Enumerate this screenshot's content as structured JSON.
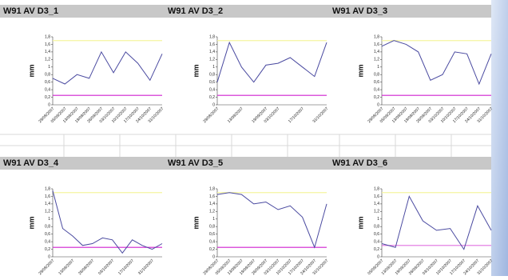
{
  "chart_data": [
    {
      "type": "line",
      "title": "W91 AV D3_1",
      "y_label": "mm",
      "color": "#4a4aa0",
      "categories": [
        "29/08/2007",
        "05/09/2007",
        "13/09/2007",
        "19/09/2007",
        "26/09/2007",
        "03/10/2007",
        "10/10/2007",
        "17/10/2007",
        "24/10/2007",
        "31/10/2007"
      ],
      "values": [
        0.7,
        0.55,
        0.8,
        0.7,
        1.4,
        0.85,
        1.4,
        1.1,
        0.65,
        1.35
      ],
      "upper_limit": 1.7,
      "upper_color": "#f4f4a0",
      "lower_limit": 0.25,
      "lower_color": "#d020d0",
      "ylim": [
        0,
        1.8
      ],
      "yticks": [
        0,
        {
          "value": 0.2,
          "label": "0,2"
        },
        {
          "value": 0.4,
          "label": "0,4"
        },
        {
          "value": 0.6,
          "label": "0,6"
        },
        {
          "value": 0.8,
          "label": "0,8"
        },
        1,
        {
          "value": 1.2,
          "label": "1,2"
        },
        {
          "value": 1.4,
          "label": "1,4"
        },
        {
          "value": 1.6,
          "label": "1,6"
        },
        {
          "value": 1.8,
          "label": "1,8"
        }
      ]
    },
    {
      "type": "line",
      "title": "W91 AV D3_2",
      "y_label": "mm",
      "color": "#4a4aa0",
      "categories": [
        "29/08/2007",
        null,
        "13/09/2007",
        null,
        "19/09/2007",
        "03/10/2007",
        null,
        "17/10/2007",
        null,
        "31/10/2007"
      ],
      "values": [
        0.6,
        1.65,
        1.0,
        0.6,
        1.05,
        1.1,
        1.25,
        1.0,
        0.75,
        1.65
      ],
      "upper_limit": 1.7,
      "upper_color": "#f4f4a0",
      "lower_limit": 0.25,
      "lower_color": "#d020d0",
      "ylim": [
        0,
        1.8
      ],
      "yticks": [
        0,
        {
          "value": 0.2,
          "label": "0,2"
        },
        {
          "value": 0.4,
          "label": "0,4"
        },
        {
          "value": 0.6,
          "label": "0,6"
        },
        {
          "value": 0.8,
          "label": "0,8"
        },
        1,
        {
          "value": 1.2,
          "label": "1,2"
        },
        {
          "value": 1.4,
          "label": "1,4"
        },
        {
          "value": 1.6,
          "label": "1,6"
        },
        {
          "value": 1.8,
          "label": "1,8"
        }
      ]
    },
    {
      "type": "line",
      "title": "W91 AV D3_3",
      "y_label": "mm",
      "color": "#4a4aa0",
      "categories": [
        "29/08/2007",
        "05/09/2007",
        "13/09/2007",
        "19/09/2007",
        "26/09/2007",
        "03/10/2007",
        "10/10/2007",
        "17/10/2007",
        "24/10/2007",
        "31/10/2007"
      ],
      "values": [
        1.55,
        1.7,
        1.6,
        1.4,
        0.65,
        0.8,
        1.4,
        1.35,
        0.55,
        1.35
      ],
      "upper_limit": 1.7,
      "upper_color": "#f4f4a0",
      "lower_limit": 0.25,
      "lower_color": "#d020d0",
      "ylim": [
        0,
        1.8
      ],
      "yticks": [
        0,
        {
          "value": 0.2,
          "label": "0,2"
        },
        {
          "value": 0.4,
          "label": "0,4"
        },
        {
          "value": 0.6,
          "label": "0,6"
        },
        {
          "value": 0.8,
          "label": "0,8"
        },
        1,
        {
          "value": 1.2,
          "label": "1,2"
        },
        {
          "value": 1.4,
          "label": "1,4"
        },
        {
          "value": 1.6,
          "label": "1,6"
        },
        {
          "value": 1.8,
          "label": "1,8"
        }
      ]
    },
    {
      "type": "line",
      "title": "W91 AV D3_4",
      "y_label": "mm",
      "color": "#4a4aa0",
      "categories": [
        "29/08/2007",
        null,
        "13/09/2007",
        null,
        "26/09/2007",
        null,
        "03/10/2007",
        null,
        "17/10/2007",
        null,
        "31/10/2007",
        null
      ],
      "values": [
        1.75,
        0.75,
        0.55,
        0.3,
        0.35,
        0.5,
        0.45,
        0.1,
        0.45,
        0.3,
        0.2,
        0.35
      ],
      "upper_limit": 1.7,
      "upper_color": "#f4f4a0",
      "lower_limit": 0.25,
      "lower_color": "#d020d0",
      "ylim": [
        0,
        1.8
      ],
      "yticks": [
        0,
        {
          "value": 0.2,
          "label": "0,2"
        },
        {
          "value": 0.4,
          "label": "0,4"
        },
        {
          "value": 0.6,
          "label": "0,6"
        },
        {
          "value": 0.8,
          "label": "0,8"
        },
        1,
        {
          "value": 1.2,
          "label": "1,2"
        },
        {
          "value": 1.4,
          "label": "1,4"
        },
        {
          "value": 1.6,
          "label": "1,6"
        },
        {
          "value": 1.8,
          "label": "1,8"
        }
      ]
    },
    {
      "type": "line",
      "title": "W91 AV D3_5",
      "y_label": "mm",
      "color": "#4a4aa0",
      "categories": [
        "29/08/2007",
        "05/09/2007",
        "13/09/2007",
        "19/09/2007",
        "26/09/2007",
        "03/10/2007",
        "10/10/2007",
        "17/10/2007",
        "24/10/2007",
        "31/10/2007"
      ],
      "values": [
        1.65,
        1.7,
        1.65,
        1.4,
        1.45,
        1.25,
        1.35,
        1.05,
        0.25,
        1.4
      ],
      "upper_limit": 1.7,
      "upper_color": "#f4f4a0",
      "lower_limit": 0.25,
      "lower_color": "#d020d0",
      "ylim": [
        0,
        1.8
      ],
      "yticks": [
        0,
        {
          "value": 0.2,
          "label": "0,2"
        },
        {
          "value": 0.4,
          "label": "0,4"
        },
        {
          "value": 0.6,
          "label": "0,6"
        },
        {
          "value": 0.8,
          "label": "0,8"
        },
        1,
        {
          "value": 1.2,
          "label": "1,2"
        },
        {
          "value": 1.4,
          "label": "1,4"
        },
        {
          "value": 1.6,
          "label": "1,6"
        },
        {
          "value": 1.8,
          "label": "1,8"
        }
      ]
    },
    {
      "type": "line",
      "title": "W91 AV D3_6",
      "y_label": "mm",
      "color": "#4a4aa0",
      "categories": [
        "05/09/2007",
        "13/09/2007",
        "19/09/2007",
        "26/09/2007",
        "03/10/2007",
        "10/10/2007",
        "17/10/2007",
        "24/10/2007",
        "31/10/2007"
      ],
      "values": [
        0.35,
        0.25,
        1.6,
        0.95,
        0.7,
        0.75,
        0.2,
        1.35,
        0.7
      ],
      "upper_limit": 1.7,
      "upper_color": "#f4f4a0",
      "lower_limit": 0.3,
      "lower_color": "#e070e0",
      "ylim": [
        0,
        1.8
      ],
      "yticks": [
        0,
        {
          "value": 0.2,
          "label": "0,2"
        },
        {
          "value": 0.4,
          "label": "0,4"
        },
        {
          "value": 0.6,
          "label": "0,6"
        },
        {
          "value": 0.8,
          "label": "0,8"
        },
        1,
        {
          "value": 1.2,
          "label": "1,2"
        },
        {
          "value": 1.4,
          "label": "1,4"
        },
        {
          "value": 1.6,
          "label": "1,6"
        },
        {
          "value": 1.8,
          "label": "1,8"
        }
      ]
    }
  ]
}
